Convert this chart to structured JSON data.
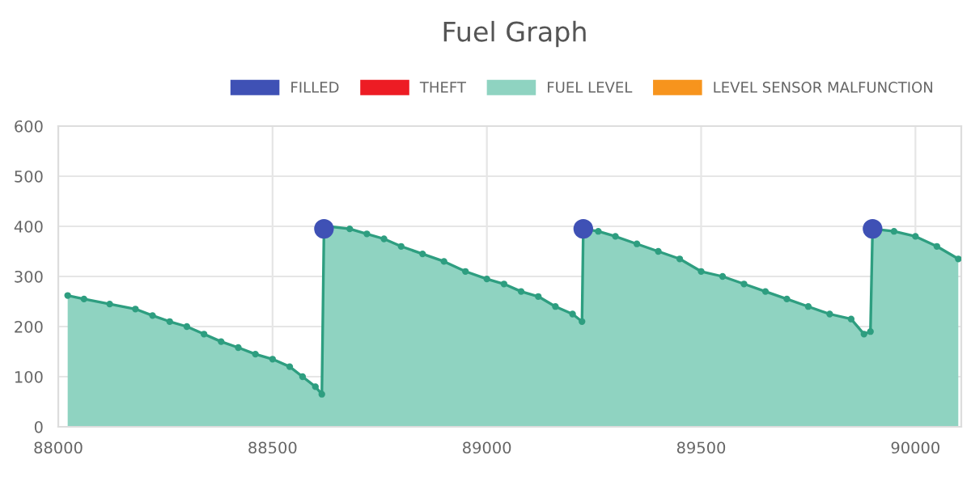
{
  "chart_data": {
    "type": "area",
    "title": "Fuel Graph",
    "xlim": [
      88000,
      90107
    ],
    "xticks": [
      88000,
      88500,
      89000,
      89500,
      90000
    ],
    "ylim": [
      0,
      600
    ],
    "yticks": [
      0,
      100,
      200,
      300,
      400,
      500,
      600
    ],
    "grid": true,
    "legend": "top",
    "marker": "circle",
    "series": [
      {
        "name": "FILLED",
        "type": "scatter",
        "color": "#3f51b5",
        "x": [
          88620,
          89225,
          89900
        ],
        "values": [
          395,
          395,
          395
        ]
      },
      {
        "name": "THEFT",
        "type": "scatter",
        "color": "#ed1c24"
      },
      {
        "name": "FUEL LEVEL",
        "color": "#8fd3c1",
        "x": [
          88022,
          88060,
          88120,
          88180,
          88220,
          88260,
          88300,
          88340,
          88380,
          88420,
          88460,
          88500,
          88540,
          88570,
          88600,
          88615,
          88620,
          88630,
          88680,
          88720,
          88760,
          88800,
          88850,
          88900,
          88950,
          89000,
          89040,
          89080,
          89120,
          89160,
          89200,
          89222,
          89225,
          89260,
          89300,
          89350,
          89400,
          89450,
          89500,
          89550,
          89600,
          89650,
          89700,
          89750,
          89800,
          89850,
          89880,
          89895,
          89900,
          89950,
          90000,
          90050,
          90100
        ],
        "values": [
          262,
          255,
          245,
          235,
          222,
          210,
          200,
          185,
          170,
          158,
          145,
          135,
          120,
          100,
          80,
          65,
          395,
          400,
          395,
          385,
          375,
          360,
          345,
          330,
          310,
          295,
          285,
          270,
          260,
          240,
          225,
          210,
          395,
          390,
          380,
          365,
          350,
          335,
          310,
          300,
          285,
          270,
          255,
          240,
          225,
          215,
          185,
          190,
          395,
          390,
          380,
          360,
          335
        ]
      },
      {
        "name": "LEVEL SENSOR MALFUNCTION",
        "type": "scatter",
        "color": "#f7941d"
      }
    ]
  }
}
